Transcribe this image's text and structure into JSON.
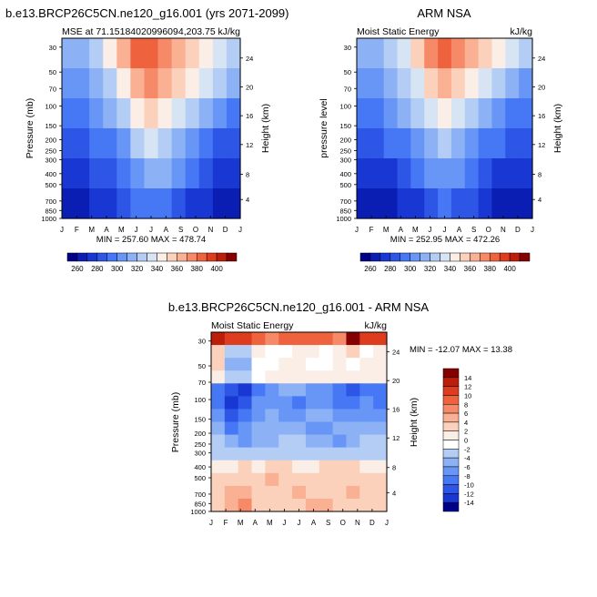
{
  "chart_data": [
    {
      "type": "heatmap",
      "title": "b.e13.BRCP26C5CN.ne120_g16.001 (yrs 2071-2099)",
      "left_label": "MSE at 71.15184020996094,203.75",
      "right_label": "kJ/kg",
      "ylabel": "Pressure (mb)",
      "ylabel_right": "Height (km)",
      "x_ticks": [
        "J",
        "F",
        "M",
        "A",
        "M",
        "J",
        "J",
        "A",
        "S",
        "O",
        "N",
        "D",
        "J"
      ],
      "y_ticks": [
        "30",
        "50",
        "70",
        "100",
        "150",
        "200",
        "250",
        "300",
        "400",
        "500",
        "700",
        "850",
        "1000"
      ],
      "y_ticks_right": [
        "24",
        "20",
        "16",
        "12",
        "8",
        "4"
      ],
      "y_scale": "log",
      "min_max": "MIN = 257.60  MAX = 478.74",
      "colorbar_labels": [
        "260",
        "280",
        "300",
        "320",
        "340",
        "360",
        "380",
        "400"
      ],
      "colorbar_levels": [
        260,
        270,
        280,
        290,
        300,
        310,
        320,
        330,
        340,
        350,
        360,
        370,
        380,
        390,
        400
      ],
      "colors": [
        "#000088",
        "#0a1eb4",
        "#1937d2",
        "#2d55e6",
        "#4677f5",
        "#6896f7",
        "#8cb2f5",
        "#b3cdf5",
        "#d7e4f4",
        "#fbeee6",
        "#fbd1bc",
        "#f9b093",
        "#f68a68",
        "#ef623e",
        "#dd3c1e",
        "#bc1e0a",
        "#850000"
      ],
      "levels_by_month": [
        [
          6,
          6,
          7,
          9,
          11,
          13,
          13,
          12,
          11,
          10,
          9,
          8,
          7
        ],
        [
          5,
          5,
          6,
          7,
          9,
          11,
          12,
          11,
          10,
          9,
          8,
          7,
          6
        ],
        [
          4,
          4,
          5,
          6,
          7,
          9,
          10,
          9,
          8,
          7,
          6,
          5,
          4
        ],
        [
          3,
          3,
          4,
          4,
          5,
          7,
          8,
          7,
          6,
          5,
          4,
          3,
          3
        ],
        [
          2,
          2,
          3,
          3,
          4,
          5,
          6,
          6,
          5,
          4,
          3,
          2,
          2
        ],
        [
          1,
          1,
          2,
          2,
          3,
          4,
          4,
          4,
          3,
          2,
          2,
          1,
          1
        ]
      ]
    },
    {
      "type": "heatmap",
      "title": "ARM NSA",
      "left_label": "Moist Static Energy",
      "right_label": "kJ/kg",
      "ylabel": "pressure level",
      "ylabel_right": "Height (km)",
      "x_ticks": [
        "J",
        "F",
        "M",
        "A",
        "M",
        "J",
        "J",
        "A",
        "S",
        "O",
        "N",
        "D",
        "J"
      ],
      "y_ticks": [
        "30",
        "50",
        "70",
        "100",
        "150",
        "200",
        "250",
        "300",
        "400",
        "500",
        "700",
        "850",
        "1000"
      ],
      "y_ticks_right": [
        "24",
        "20",
        "16",
        "12",
        "8",
        "4"
      ],
      "y_scale": "log",
      "min_max": "MIN = 252.95  MAX = 472.26",
      "colorbar_labels": [
        "260",
        "280",
        "300",
        "320",
        "340",
        "360",
        "380",
        "400"
      ],
      "colorbar_levels": [
        260,
        270,
        280,
        290,
        300,
        310,
        320,
        330,
        340,
        350,
        360,
        370,
        380,
        390,
        400
      ],
      "colors": [
        "#000088",
        "#0a1eb4",
        "#1937d2",
        "#2d55e6",
        "#4677f5",
        "#6896f7",
        "#8cb2f5",
        "#b3cdf5",
        "#d7e4f4",
        "#fbeee6",
        "#fbd1bc",
        "#f9b093",
        "#f68a68",
        "#ef623e",
        "#dd3c1e",
        "#bc1e0a",
        "#850000"
      ],
      "levels_by_month": [
        [
          6,
          6,
          7,
          8,
          10,
          12,
          13,
          12,
          11,
          10,
          9,
          8,
          7
        ],
        [
          5,
          5,
          6,
          7,
          8,
          10,
          11,
          10,
          9,
          8,
          7,
          6,
          5
        ],
        [
          4,
          4,
          5,
          6,
          7,
          8,
          9,
          8,
          7,
          6,
          5,
          4,
          4
        ],
        [
          3,
          3,
          4,
          4,
          5,
          6,
          7,
          6,
          5,
          4,
          4,
          3,
          3
        ],
        [
          2,
          2,
          2,
          3,
          4,
          5,
          5,
          5,
          4,
          3,
          2,
          2,
          2
        ],
        [
          1,
          1,
          1,
          2,
          2,
          3,
          4,
          3,
          3,
          2,
          1,
          1,
          1
        ]
      ]
    },
    {
      "type": "heatmap",
      "title": "b.e13.BRCP26C5CN.ne120_g16.001 - ARM NSA",
      "left_label": "Moist Static Energy",
      "right_label": "kJ/kg",
      "ylabel": "Pressure (mb)",
      "ylabel_right": "Height (km)",
      "x_ticks": [
        "J",
        "F",
        "M",
        "A",
        "M",
        "J",
        "J",
        "A",
        "S",
        "O",
        "N",
        "D",
        "J"
      ],
      "y_ticks": [
        "30",
        "50",
        "70",
        "100",
        "150",
        "200",
        "250",
        "300",
        "400",
        "500",
        "700",
        "850",
        "1000"
      ],
      "y_ticks_right": [
        "24",
        "20",
        "16",
        "12",
        "8",
        "4"
      ],
      "y_scale": "log",
      "min_max": "MIN = -12.07  MAX =  13.38",
      "colorbar_labels": [
        "14",
        "12",
        "10",
        "8",
        "6",
        "4",
        "2",
        "0",
        "-2",
        "-4",
        "-6",
        "-8",
        "-10",
        "-12",
        "-14"
      ],
      "colorbar_levels": [
        14,
        12,
        10,
        8,
        6,
        4,
        2,
        0,
        -2,
        -4,
        -6,
        -8,
        -10,
        -12,
        -14
      ],
      "colors": [
        "#850000",
        "#bc1e0a",
        "#dd3c1e",
        "#ef623e",
        "#f68a68",
        "#f9b093",
        "#fbd1bc",
        "#fbeee6",
        "#ffffff",
        "#b3cdf5",
        "#8cb2f5",
        "#6896f7",
        "#4677f5",
        "#2d55e6",
        "#1937d2",
        "#000088"
      ],
      "levels_by_month": [
        [
          1,
          2,
          2,
          3,
          4,
          3,
          3,
          3,
          3,
          4,
          0,
          2,
          2
        ],
        [
          6,
          9,
          9,
          7,
          8,
          8,
          7,
          7,
          8,
          7,
          6,
          8,
          7
        ],
        [
          6,
          10,
          10,
          8,
          8,
          7,
          7,
          8,
          8,
          7,
          8,
          7,
          7
        ],
        [
          7,
          9,
          9,
          8,
          7,
          7,
          7,
          7,
          7,
          7,
          7,
          7,
          7
        ],
        [
          12,
          13,
          14,
          12,
          11,
          10,
          10,
          11,
          11,
          12,
          13,
          12,
          12
        ],
        [
          12,
          14,
          13,
          11,
          11,
          11,
          12,
          11,
          11,
          12,
          12,
          11,
          12
        ],
        [
          11,
          13,
          12,
          11,
          10,
          11,
          11,
          10,
          10,
          11,
          11,
          11,
          11
        ],
        [
          10,
          12,
          11,
          10,
          10,
          10,
          10,
          11,
          11,
          10,
          10,
          10,
          10
        ],
        [
          9,
          10,
          11,
          10,
          10,
          9,
          9,
          10,
          10,
          11,
          10,
          9,
          9
        ],
        [
          9,
          9,
          9,
          9,
          9,
          9,
          9,
          9,
          9,
          9,
          9,
          9,
          9
        ],
        [
          7,
          7,
          6,
          7,
          6,
          6,
          7,
          7,
          6,
          6,
          6,
          7,
          7
        ],
        [
          6,
          6,
          6,
          6,
          5,
          6,
          6,
          6,
          6,
          6,
          6,
          6,
          6
        ],
        [
          6,
          5,
          5,
          6,
          6,
          6,
          5,
          6,
          6,
          6,
          5,
          6,
          6
        ],
        [
          6,
          5,
          4,
          6,
          6,
          6,
          6,
          5,
          5,
          6,
          6,
          6,
          6
        ]
      ]
    }
  ]
}
